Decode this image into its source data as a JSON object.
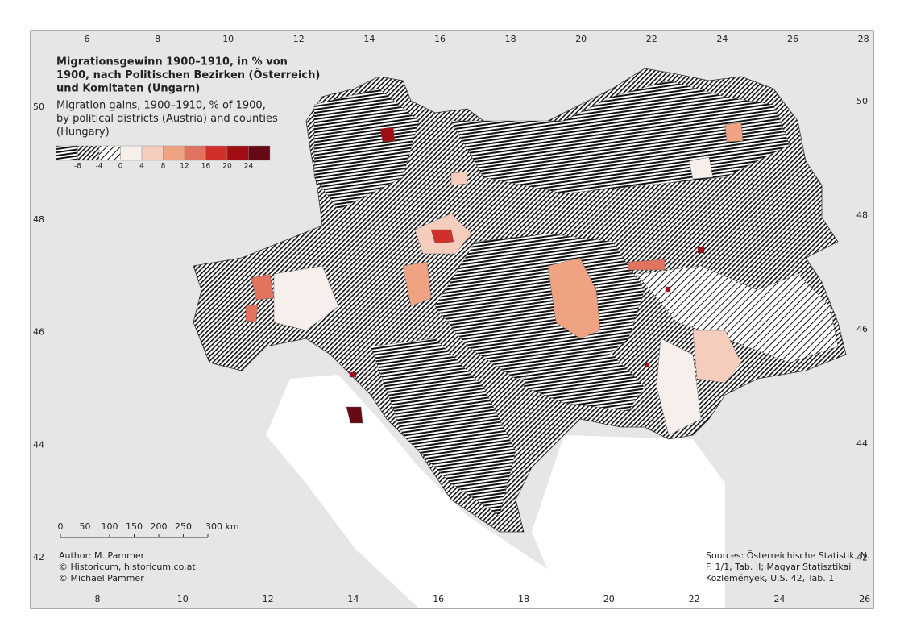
{
  "title": [
    "Migrationsgewinn 1900–1910, in % von",
    "1900, nach Politischen Bezirken (Österreich)",
    "und Komitaten (Ungarn)"
  ],
  "subtitle": [
    "Migration gains, 1900–1910, % of 1900,",
    "by political districts (Austria) and counties",
    "(Hungary)"
  ],
  "legend": {
    "ticks": [
      -8,
      -4,
      0,
      4,
      8,
      12,
      16,
      20,
      24
    ],
    "classes": [
      "url(#hatch-h)",
      "url(#hatch-d)",
      "url(#hatch-s)",
      "#f6efec",
      "#f6cdbd",
      "#f0a383",
      "#e2735f",
      "#d0302a",
      "#a00e14",
      "#650a14"
    ]
  },
  "scale_bar": {
    "ticks": [
      0,
      50,
      100,
      150,
      200,
      250,
      {
        "value": 300,
        "label": "300 km"
      }
    ]
  },
  "graticule": {
    "top": [
      6,
      8,
      10,
      12,
      14,
      16,
      18,
      20,
      22,
      24,
      26,
      28
    ],
    "bottom": [
      8,
      10,
      12,
      14,
      16,
      18,
      20,
      22,
      24,
      26
    ],
    "left": [
      42,
      44,
      46,
      48,
      50
    ],
    "right": [
      42,
      44,
      46,
      48,
      50
    ]
  },
  "credits": [
    "Author: M. Pammer",
    "© Historicum, historicum.co.at",
    "© Michael Pammer"
  ],
  "sources": [
    "Sources: Österreichische Statistik, N.",
    "F. 1/1, Tab. II; Magyar Statisztikai",
    "Közlemények, U.S. 42, Tab. 1"
  ]
}
